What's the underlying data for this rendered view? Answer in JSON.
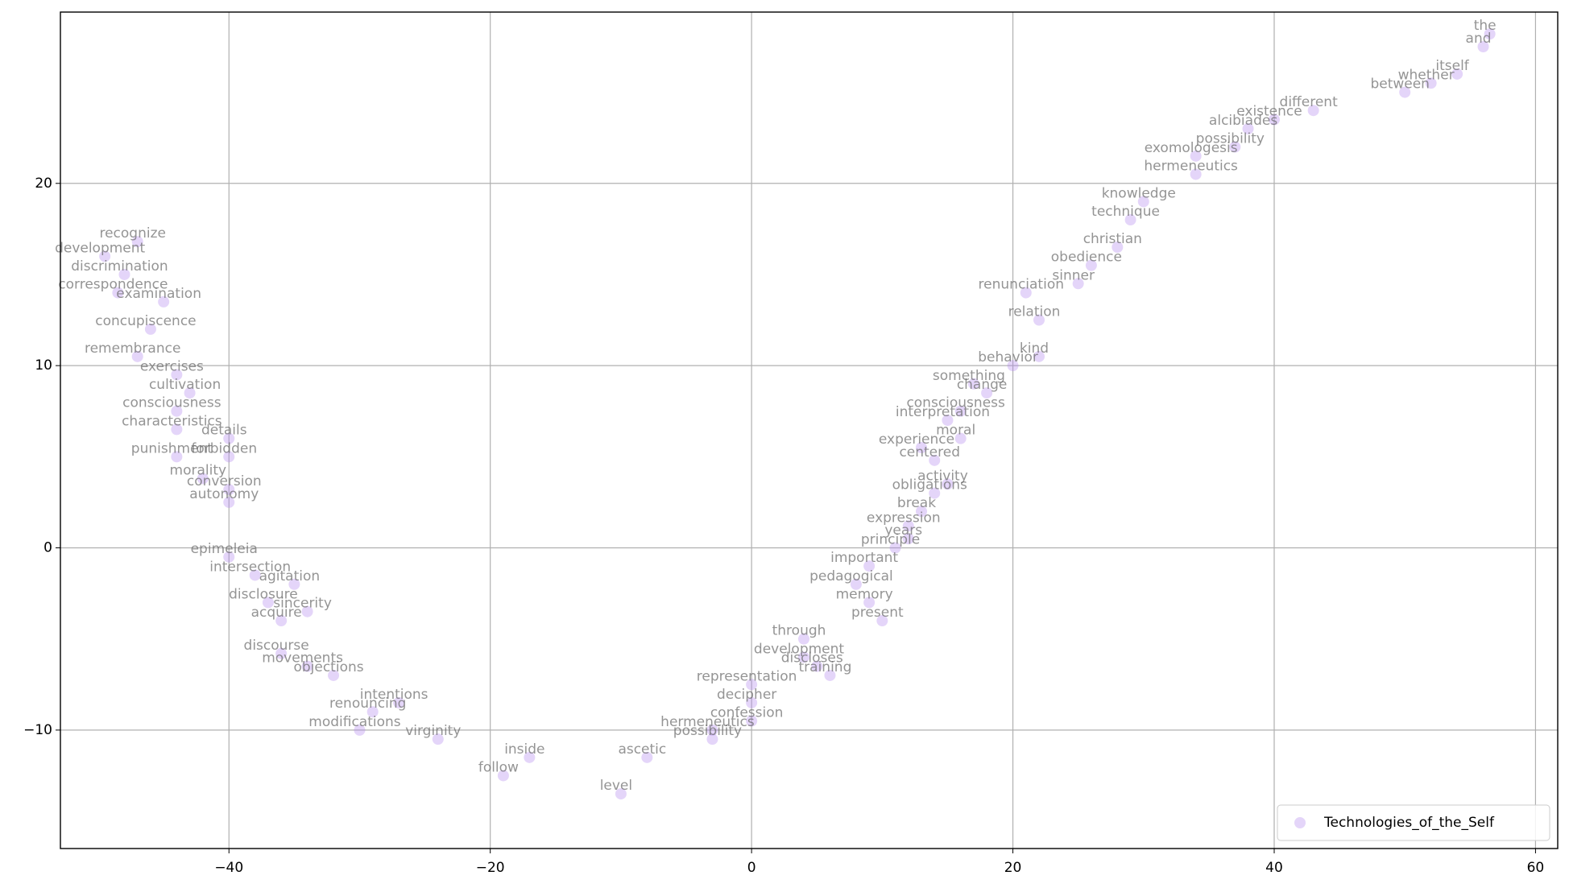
{
  "chart_data": {
    "type": "scatter",
    "xlim": [
      -52.9,
      61.7
    ],
    "ylim": [
      -16.5,
      29.4
    ],
    "xticks": [
      {
        "value": -40,
        "label": "−40"
      },
      {
        "value": -20,
        "label": "−20"
      },
      0,
      20,
      40,
      60
    ],
    "yticks": [
      {
        "value": -10,
        "label": "−10"
      },
      0,
      10,
      20
    ],
    "grid": true,
    "legend": "lower right",
    "series": [
      {
        "name": "Technologies_of_the_Self",
        "color": "#b388ee",
        "labels": [
          "recognize",
          "development",
          "discrimination",
          "correspondence",
          "examination",
          "concupiscence",
          "remembrance",
          "exercises",
          "cultivation",
          "consciousness",
          "characteristics",
          "details",
          "punishment",
          "forbidden",
          "morality",
          "conversion",
          "autonomy",
          "intersection",
          "epimeleia",
          "agitation",
          "disclosure",
          "acquire",
          "sincerity",
          "discourse",
          "movements",
          "objections",
          "renouncing",
          "modifications",
          "intentions",
          "virginity",
          "inside",
          "follow",
          "level",
          "ascetic",
          "possibility",
          "hermeneutics",
          "decipher",
          "representation",
          "confession",
          "training",
          "discloses",
          "development",
          "through",
          "memory",
          "present",
          "pedagogical",
          "important",
          "years",
          "principle",
          "expression",
          "break",
          "obligations",
          "activity",
          "centered",
          "experience",
          "moral",
          "interpretation",
          "consciousness",
          "change",
          "something",
          "behavior",
          "kind",
          "renunciation",
          "relation",
          "sinner",
          "obedience",
          "christian",
          "technique",
          "knowledge",
          "hermeneutics",
          "exomologesis",
          "possibility",
          "alcibiades",
          "existence",
          "different",
          "between",
          "whether",
          "itself",
          "the",
          "and"
        ],
        "x": [
          -47,
          -49.5,
          -48,
          -48.5,
          -45,
          -46,
          -47,
          -44,
          -43,
          -44,
          -44,
          -40,
          -44,
          -40,
          -42,
          -40,
          -40,
          -38,
          -40,
          -35,
          -37,
          -36,
          -34,
          -36,
          -34,
          -32,
          -29,
          -30,
          -27,
          -24,
          -17,
          -19,
          -10,
          -8,
          -3,
          -3,
          0,
          0,
          0,
          6,
          5,
          4,
          4,
          9,
          10,
          8,
          9,
          12,
          11,
          12,
          13,
          14,
          15,
          14,
          13,
          16,
          15,
          16,
          18,
          17,
          20,
          22,
          21,
          22,
          25,
          26,
          28,
          29,
          30,
          34,
          34,
          37,
          38,
          40,
          43,
          50,
          52,
          54,
          56.5,
          56
        ],
        "values": [
          16.8,
          16,
          15,
          14,
          13.5,
          12,
          10.5,
          9.5,
          8.5,
          7.5,
          6.5,
          6,
          5,
          5,
          3.8,
          3.2,
          2.5,
          -1.5,
          -0.5,
          -2,
          -3,
          -4,
          -3.5,
          -5.8,
          -6.5,
          -7,
          -9,
          -10,
          -8.5,
          -10.5,
          -11.5,
          -12.5,
          -13.5,
          -11.5,
          -10.5,
          -10,
          -8.5,
          -7.5,
          -9.5,
          -7,
          -6.5,
          -6,
          -5,
          -3,
          -4,
          -2,
          -1,
          0.5,
          0,
          1.2,
          2,
          3,
          3.5,
          4.8,
          5.5,
          6,
          7,
          7.5,
          8.5,
          9,
          10,
          10.5,
          14,
          12.5,
          14.5,
          15.5,
          16.5,
          18,
          19,
          20.5,
          21.5,
          22,
          23,
          23.5,
          24,
          25,
          25.5,
          26,
          28.2,
          27.5
        ]
      }
    ]
  }
}
